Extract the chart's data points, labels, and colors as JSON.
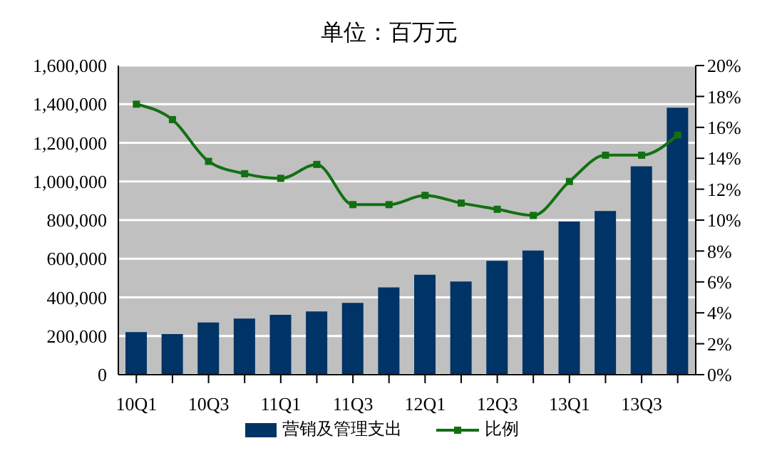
{
  "chart_data": {
    "type": "bar",
    "title": "单位：百万元",
    "categories": [
      "10Q1",
      null,
      "10Q3",
      null,
      "11Q1",
      null,
      "11Q3",
      null,
      "12Q1",
      null,
      "12Q3",
      null,
      "13Q1",
      null,
      "13Q3",
      null
    ],
    "series": [
      {
        "name": "营销及管理支出",
        "color": "#003366",
        "values": [
          220000,
          210000,
          270000,
          290000,
          310000,
          327000,
          371000,
          452000,
          517000,
          482000,
          589000,
          642000,
          793000,
          847000,
          1078000,
          1382000
        ]
      },
      {
        "name": "比例",
        "type": "line",
        "axis": "y2",
        "color": "#127012",
        "values": [
          17.5,
          16.5,
          13.8,
          13.0,
          12.7,
          13.6,
          11.0,
          11.0,
          11.6,
          11.1,
          10.7,
          10.3,
          12.5,
          14.2,
          14.2,
          15.5
        ]
      }
    ],
    "ylim": [
      0,
      1600000
    ],
    "yticks": [
      0,
      {
        "value": 200000,
        "label": "200,000"
      },
      {
        "value": 400000,
        "label": "400,000"
      },
      {
        "value": 600000,
        "label": "600,000"
      },
      {
        "value": 800000,
        "label": "800,000"
      },
      {
        "value": 1000000,
        "label": "1,000,000"
      },
      {
        "value": 1200000,
        "label": "1,200,000"
      },
      {
        "value": 1400000,
        "label": "1,400,000"
      },
      {
        "value": 1600000,
        "label": "1,600,000"
      }
    ],
    "y2lim": [
      0,
      20
    ],
    "y2ticks": [
      {
        "value": 0,
        "label": "0%"
      },
      {
        "value": 2,
        "label": "2%"
      },
      {
        "value": 4,
        "label": "4%"
      },
      {
        "value": 6,
        "label": "6%"
      },
      {
        "value": 8,
        "label": "8%"
      },
      {
        "value": 10,
        "label": "10%"
      },
      {
        "value": 12,
        "label": "12%"
      },
      {
        "value": 14,
        "label": "14%"
      },
      {
        "value": 16,
        "label": "16%"
      },
      {
        "value": 18,
        "label": "18%"
      },
      {
        "value": 20,
        "label": "20%"
      }
    ],
    "grid": "y",
    "legend": "bottom",
    "marker": "square",
    "line_style": "solid"
  }
}
